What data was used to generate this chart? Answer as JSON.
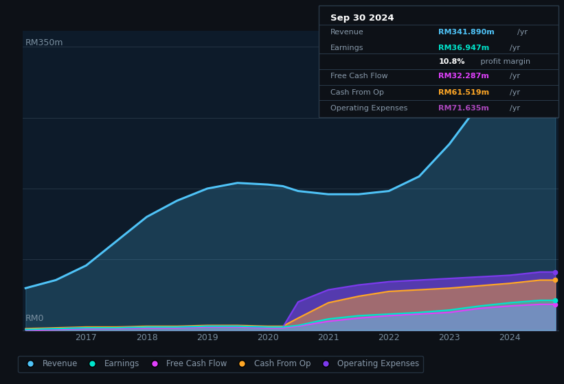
{
  "bg_color": "#0d1117",
  "plot_bg_color": "#0d1b2a",
  "grid_color": "#253545",
  "title_box": {
    "date": "Sep 30 2024",
    "rows": [
      {
        "label": "Revenue",
        "value": "RM341.890m",
        "unit": "/yr",
        "value_color": "#4fc3f7"
      },
      {
        "label": "Earnings",
        "value": "RM36.947m",
        "unit": "/yr",
        "value_color": "#00e5cc"
      },
      {
        "label": "",
        "value": "10.8%",
        "unit": " profit margin",
        "value_color": "#ffffff"
      },
      {
        "label": "Free Cash Flow",
        "value": "RM32.287m",
        "unit": "/yr",
        "value_color": "#e040fb"
      },
      {
        "label": "Cash From Op",
        "value": "RM61.519m",
        "unit": "/yr",
        "value_color": "#ffa726"
      },
      {
        "label": "Operating Expenses",
        "value": "RM71.635m",
        "unit": "/yr",
        "value_color": "#ab47bc"
      }
    ]
  },
  "years": [
    2016.0,
    2016.5,
    2017.0,
    2017.5,
    2018.0,
    2018.5,
    2019.0,
    2019.5,
    2020.0,
    2020.25,
    2020.5,
    2021.0,
    2021.5,
    2022.0,
    2022.5,
    2023.0,
    2023.5,
    2024.0,
    2024.5,
    2024.75
  ],
  "revenue": [
    52,
    62,
    80,
    110,
    140,
    160,
    175,
    182,
    180,
    178,
    172,
    168,
    168,
    172,
    190,
    230,
    280,
    330,
    342,
    342
  ],
  "earnings": [
    1,
    2,
    3,
    3,
    4,
    4,
    5,
    5,
    4,
    4,
    6,
    14,
    18,
    20,
    22,
    25,
    30,
    34,
    37,
    37
  ],
  "free_cash": [
    0,
    1,
    2,
    2,
    3,
    3,
    4,
    4,
    3,
    3,
    5,
    11,
    15,
    18,
    20,
    22,
    27,
    30,
    32,
    32
  ],
  "cash_from_op": [
    2,
    3,
    4,
    4,
    5,
    5,
    6,
    6,
    5,
    5,
    15,
    34,
    42,
    48,
    50,
    52,
    55,
    58,
    62,
    62
  ],
  "op_expenses": [
    1,
    2,
    3,
    3,
    4,
    4,
    5,
    5,
    4,
    4,
    35,
    50,
    56,
    60,
    62,
    64,
    66,
    68,
    72,
    72
  ],
  "revenue_color": "#4fc3f7",
  "earnings_color": "#00e5cc",
  "free_cash_color": "#e040fb",
  "cash_from_op_color": "#ffa726",
  "op_expenses_color": "#7c3aed",
  "ylabel_top": "RM350m",
  "ylabel_bottom": "RM0",
  "ylim": [
    0,
    370
  ],
  "xtick_years": [
    2017,
    2018,
    2019,
    2020,
    2021,
    2022,
    2023,
    2024
  ],
  "legend": [
    {
      "label": "Revenue",
      "color": "#4fc3f7"
    },
    {
      "label": "Earnings",
      "color": "#00e5cc"
    },
    {
      "label": "Free Cash Flow",
      "color": "#e040fb"
    },
    {
      "label": "Cash From Op",
      "color": "#ffa726"
    },
    {
      "label": "Operating Expenses",
      "color": "#7c3aed"
    }
  ]
}
